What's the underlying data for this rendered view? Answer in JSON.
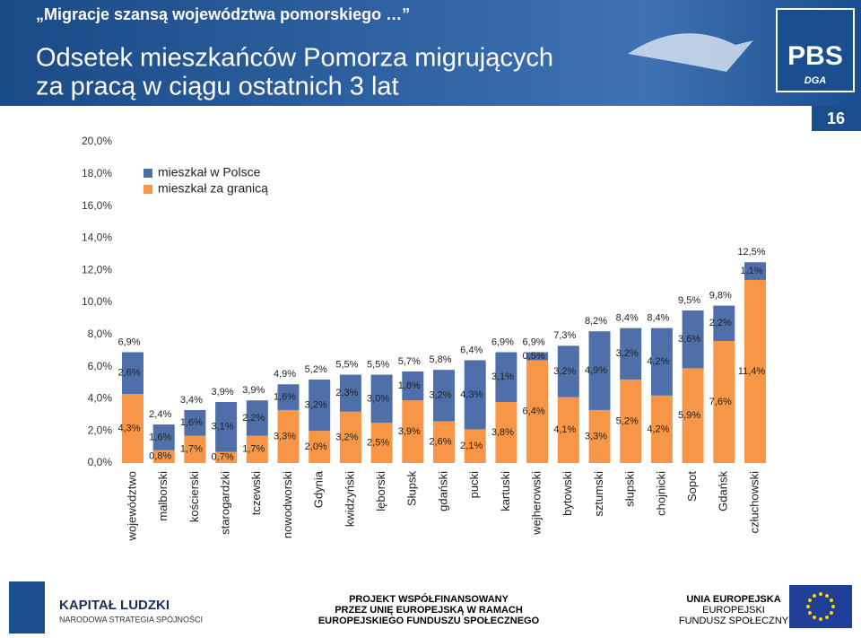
{
  "header": {
    "subtitle": "„Migracje szansą województwa pomorskiego …”",
    "title": [
      "Odsetek mieszkańców Pomorza migrujących",
      "za pracą w ciągu ostatnich 3 lat"
    ],
    "logo": "PBS",
    "logo_sub": "DGA",
    "page_number": "16"
  },
  "chart_data": {
    "type": "stacked_bar",
    "categories": [
      "województwo",
      "malborski",
      "kościerski",
      "starogardzki",
      "tczewski",
      "nowodworski",
      "Gdynia",
      "kwidzyński",
      "lęborski",
      "Słupsk",
      "gdański",
      "pucki",
      "kartuski",
      "wejherowski",
      "bytowski",
      "sztumski",
      "słupski",
      "chojnicki",
      "Sopot",
      "Gdańsk",
      "człuchowski"
    ],
    "series": [
      {
        "name": "mieszkał w Polsce",
        "color": "#4f6faa",
        "values": [
          2.6,
          1.6,
          1.6,
          3.1,
          2.2,
          1.6,
          3.2,
          2.3,
          3.0,
          1.8,
          3.2,
          4.3,
          3.1,
          0.5,
          3.2,
          4.9,
          3.2,
          4.2,
          3.6,
          2.2,
          1.1
        ],
        "value_labels": [
          "2,6%",
          "1,6%",
          "1,6%",
          "3,1%",
          "2,2%",
          "1,6%",
          "3,2%",
          "2,3%",
          "3,0%",
          "1,8%",
          "3,2%",
          "4,3%",
          "3,1%",
          "0,5%",
          "3,2%",
          "4,9%",
          "3,2%",
          "4,2%",
          "3,6%",
          "2,2%",
          "1,1%"
        ]
      },
      {
        "name": "mieszkał za granicą",
        "color": "#f79646",
        "values": [
          4.3,
          0.8,
          1.7,
          0.7,
          1.7,
          3.3,
          2.0,
          3.2,
          2.5,
          3.9,
          2.6,
          2.1,
          3.8,
          6.4,
          4.1,
          3.3,
          5.2,
          4.2,
          5.9,
          7.6,
          11.4
        ],
        "value_labels": [
          "4,3%",
          "0,8%",
          "1,7%",
          "0,7%",
          "1,7%",
          "3,3%",
          "2,0%",
          "3,2%",
          "2,5%",
          "3,9%",
          "2,6%",
          "2,1%",
          "3,8%",
          "6,4%",
          "4,1%",
          "3,3%",
          "5,2%",
          "4,2%",
          "5,9%",
          "7,6%",
          "11,4%"
        ]
      }
    ],
    "totals": {
      "values": [
        6.9,
        2.4,
        3.4,
        3.9,
        3.9,
        4.9,
        5.2,
        5.5,
        5.5,
        5.7,
        5.8,
        6.4,
        6.9,
        6.9,
        7.3,
        8.2,
        8.4,
        8.4,
        9.5,
        9.8,
        12.5
      ],
      "value_labels": [
        "6,9%",
        "2,4%",
        "3,4%",
        "3,9%",
        "3,9%",
        "4,9%",
        "5,2%",
        "5,5%",
        "5,5%",
        "5,7%",
        "5,8%",
        "6,4%",
        "6,9%",
        "6,9%",
        "7,3%",
        "8,2%",
        "8,4%",
        "8,4%",
        "9,5%",
        "9,8%",
        "12,5%"
      ]
    },
    "ylim": [
      0,
      20
    ],
    "yticks": [
      {
        "value": 0,
        "label": "0,0%"
      },
      {
        "value": 2,
        "label": "2,0%"
      },
      {
        "value": 4,
        "label": "4,0%"
      },
      {
        "value": 6,
        "label": "6,0%"
      },
      {
        "value": 8,
        "label": "8,0%"
      },
      {
        "value": 10,
        "label": "10,0%"
      },
      {
        "value": 12,
        "label": "12,0%"
      },
      {
        "value": 14,
        "label": "14,0%"
      },
      {
        "value": 16,
        "label": "16,0%"
      },
      {
        "value": 18,
        "label": "18,0%"
      },
      {
        "value": 20,
        "label": "20,0%"
      }
    ],
    "grid": false,
    "legend": "top-left"
  },
  "footer": {
    "left": [
      "KAPITAŁ LUDZKI",
      "NARODOWA STRATEGIA SPÓJNOŚCI"
    ],
    "center": [
      "PROJEKT WSPÓŁFINANSOWANY",
      "PRZEZ UNIĘ EUROPEJSKĄ W RAMACH",
      "EUROPEJSKIEGO FUNDUSZU SPOŁECZNEGO"
    ],
    "right": [
      "UNIA EUROPEJSKA",
      "EUROPEJSKI",
      "FUNDUSZ SPOŁECZNY"
    ]
  }
}
